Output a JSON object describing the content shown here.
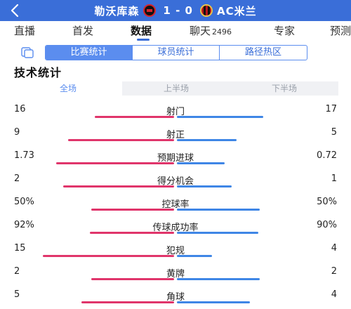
{
  "header": {
    "home_team": "勒沃库森",
    "score": "1 - 0",
    "away_team": "AC米兰"
  },
  "tabs": [
    {
      "label": "直播",
      "count": ""
    },
    {
      "label": "首发",
      "count": ""
    },
    {
      "label": "数据",
      "count": ""
    },
    {
      "label": "聊天",
      "count": "2496"
    },
    {
      "label": "专家",
      "count": ""
    },
    {
      "label": "预测",
      "count": ""
    }
  ],
  "active_tab": 2,
  "subtabs": [
    "比赛统计",
    "球员统计",
    "路径热区"
  ],
  "active_subtab": 0,
  "section_title": "技术统计",
  "halves": [
    "全场",
    "上半场",
    "下半场"
  ],
  "active_half": 0,
  "stats": [
    {
      "name": "射门",
      "left": "16",
      "right": "17",
      "left_share": 0.48,
      "right_share": 0.52
    },
    {
      "name": "射正",
      "left": "9",
      "right": "5",
      "left_share": 0.64,
      "right_share": 0.36
    },
    {
      "name": "预期进球",
      "left": "1.73",
      "right": "0.72",
      "left_share": 0.71,
      "right_share": 0.29
    },
    {
      "name": "得分机会",
      "left": "2",
      "right": "1",
      "left_share": 0.67,
      "right_share": 0.33
    },
    {
      "name": "控球率",
      "left": "50%",
      "right": "50%",
      "left_share": 0.5,
      "right_share": 0.5
    },
    {
      "name": "传球成功率",
      "left": "92%",
      "right": "90%",
      "left_share": 0.51,
      "right_share": 0.49
    },
    {
      "name": "犯规",
      "left": "15",
      "right": "4",
      "left_share": 0.79,
      "right_share": 0.21
    },
    {
      "name": "黄牌",
      "left": "2",
      "right": "2",
      "left_share": 0.5,
      "right_share": 0.5
    },
    {
      "name": "角球",
      "left": "5",
      "right": "4",
      "left_share": 0.56,
      "right_share": 0.44
    }
  ],
  "colors": {
    "header_bg": "#3a6ed8",
    "accent": "#5b8def",
    "home_bar": "#e0356b",
    "away_bar": "#3f86e6"
  }
}
